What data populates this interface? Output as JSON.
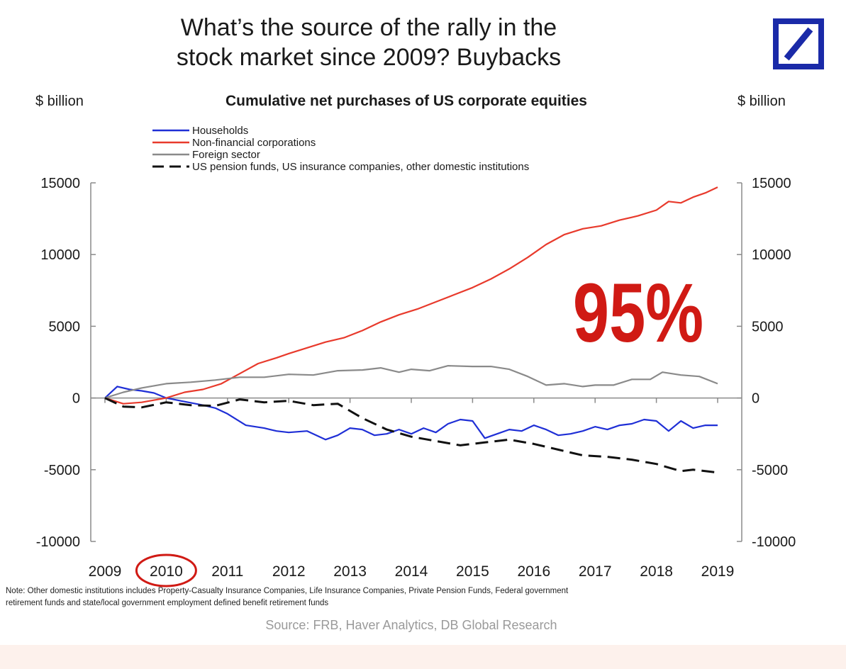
{
  "header": {
    "title_line1": "What’s the source of the rally in the",
    "title_line2": "stock market since 2009? Buybacks",
    "logo_icon": "deutsche-bank-logo",
    "logo_color": "#1a2aa8"
  },
  "chart_data": {
    "type": "line",
    "title": "Cumulative net purchases of US corporate equities",
    "ylabel_left": "$ billion",
    "ylabel_right": "$ billion",
    "xlim": [
      2009,
      2019
    ],
    "ylim": [
      -10000,
      15000
    ],
    "x_ticks": [
      "2009",
      "2010",
      "2011",
      "2012",
      "2013",
      "2014",
      "2015",
      "2016",
      "2017",
      "2018",
      "2019"
    ],
    "y_ticks_left": [
      "15000",
      "10000",
      "5000",
      "0",
      "-5000",
      "-10000"
    ],
    "y_ticks_right": [
      "15000",
      "10000",
      "5000",
      "0",
      "-5000",
      "-10000"
    ],
    "y_tick_values": [
      15000,
      10000,
      5000,
      0,
      -5000,
      -10000
    ],
    "grid": false,
    "legend_position": "top-left",
    "annotation": {
      "text": "95%",
      "color": "#d01a14"
    },
    "highlight": {
      "label": "2010",
      "shape": "ellipse",
      "color": "#d01a14"
    },
    "series": [
      {
        "name": "Households",
        "color": "#1f2fd6",
        "style": "solid",
        "points": [
          [
            2009.0,
            0
          ],
          [
            2009.2,
            800
          ],
          [
            2009.4,
            600
          ],
          [
            2009.6,
            500
          ],
          [
            2009.8,
            350
          ],
          [
            2010.0,
            0
          ],
          [
            2010.3,
            -250
          ],
          [
            2010.6,
            -500
          ],
          [
            2010.8,
            -700
          ],
          [
            2011.0,
            -1100
          ],
          [
            2011.3,
            -1900
          ],
          [
            2011.6,
            -2100
          ],
          [
            2011.8,
            -2300
          ],
          [
            2012.0,
            -2400
          ],
          [
            2012.3,
            -2300
          ],
          [
            2012.6,
            -2900
          ],
          [
            2012.8,
            -2600
          ],
          [
            2013.0,
            -2100
          ],
          [
            2013.2,
            -2200
          ],
          [
            2013.4,
            -2600
          ],
          [
            2013.6,
            -2500
          ],
          [
            2013.8,
            -2200
          ],
          [
            2014.0,
            -2500
          ],
          [
            2014.2,
            -2100
          ],
          [
            2014.4,
            -2400
          ],
          [
            2014.6,
            -1800
          ],
          [
            2014.8,
            -1500
          ],
          [
            2015.0,
            -1600
          ],
          [
            2015.2,
            -2800
          ],
          [
            2015.4,
            -2500
          ],
          [
            2015.6,
            -2200
          ],
          [
            2015.8,
            -2300
          ],
          [
            2016.0,
            -1900
          ],
          [
            2016.2,
            -2200
          ],
          [
            2016.4,
            -2600
          ],
          [
            2016.6,
            -2500
          ],
          [
            2016.8,
            -2300
          ],
          [
            2017.0,
            -2000
          ],
          [
            2017.2,
            -2200
          ],
          [
            2017.4,
            -1900
          ],
          [
            2017.6,
            -1800
          ],
          [
            2017.8,
            -1500
          ],
          [
            2018.0,
            -1600
          ],
          [
            2018.2,
            -2300
          ],
          [
            2018.4,
            -1600
          ],
          [
            2018.6,
            -2100
          ],
          [
            2018.8,
            -1900
          ],
          [
            2019.0,
            -1900
          ]
        ]
      },
      {
        "name": "Non-financial corporations",
        "color": "#e83a2c",
        "style": "solid",
        "points": [
          [
            2009.0,
            0
          ],
          [
            2009.3,
            -400
          ],
          [
            2009.6,
            -300
          ],
          [
            2010.0,
            0
          ],
          [
            2010.3,
            400
          ],
          [
            2010.6,
            600
          ],
          [
            2010.9,
            1000
          ],
          [
            2011.2,
            1700
          ],
          [
            2011.5,
            2400
          ],
          [
            2011.8,
            2800
          ],
          [
            2012.0,
            3100
          ],
          [
            2012.3,
            3500
          ],
          [
            2012.6,
            3900
          ],
          [
            2012.9,
            4200
          ],
          [
            2013.2,
            4700
          ],
          [
            2013.5,
            5300
          ],
          [
            2013.8,
            5800
          ],
          [
            2014.1,
            6200
          ],
          [
            2014.4,
            6700
          ],
          [
            2014.7,
            7200
          ],
          [
            2015.0,
            7700
          ],
          [
            2015.3,
            8300
          ],
          [
            2015.6,
            9000
          ],
          [
            2015.9,
            9800
          ],
          [
            2016.2,
            10700
          ],
          [
            2016.5,
            11400
          ],
          [
            2016.8,
            11800
          ],
          [
            2017.1,
            12000
          ],
          [
            2017.4,
            12400
          ],
          [
            2017.7,
            12700
          ],
          [
            2018.0,
            13100
          ],
          [
            2018.2,
            13700
          ],
          [
            2018.4,
            13600
          ],
          [
            2018.6,
            14000
          ],
          [
            2018.8,
            14300
          ],
          [
            2019.0,
            14700
          ]
        ]
      },
      {
        "name": "Foreign sector",
        "color": "#8a8a8a",
        "style": "solid",
        "points": [
          [
            2009.0,
            0
          ],
          [
            2009.3,
            400
          ],
          [
            2009.6,
            700
          ],
          [
            2010.0,
            1000
          ],
          [
            2010.4,
            1100
          ],
          [
            2010.8,
            1250
          ],
          [
            2011.2,
            1450
          ],
          [
            2011.6,
            1450
          ],
          [
            2012.0,
            1650
          ],
          [
            2012.4,
            1600
          ],
          [
            2012.8,
            1900
          ],
          [
            2013.2,
            1950
          ],
          [
            2013.5,
            2100
          ],
          [
            2013.8,
            1800
          ],
          [
            2014.0,
            2000
          ],
          [
            2014.3,
            1900
          ],
          [
            2014.6,
            2250
          ],
          [
            2015.0,
            2200
          ],
          [
            2015.3,
            2200
          ],
          [
            2015.6,
            2000
          ],
          [
            2015.9,
            1500
          ],
          [
            2016.2,
            900
          ],
          [
            2016.5,
            1000
          ],
          [
            2016.8,
            800
          ],
          [
            2017.0,
            900
          ],
          [
            2017.3,
            900
          ],
          [
            2017.6,
            1300
          ],
          [
            2017.9,
            1300
          ],
          [
            2018.1,
            1800
          ],
          [
            2018.4,
            1600
          ],
          [
            2018.7,
            1500
          ],
          [
            2019.0,
            1000
          ]
        ]
      },
      {
        "name": "US pension funds, US insurance companies, other domestic institutions",
        "color": "#111111",
        "style": "dashed",
        "points": [
          [
            2009.0,
            0
          ],
          [
            2009.3,
            -600
          ],
          [
            2009.6,
            -650
          ],
          [
            2010.0,
            -300
          ],
          [
            2010.4,
            -500
          ],
          [
            2010.8,
            -550
          ],
          [
            2011.2,
            -100
          ],
          [
            2011.6,
            -300
          ],
          [
            2012.0,
            -200
          ],
          [
            2012.4,
            -500
          ],
          [
            2012.8,
            -400
          ],
          [
            2013.2,
            -1400
          ],
          [
            2013.6,
            -2200
          ],
          [
            2014.0,
            -2700
          ],
          [
            2014.4,
            -3000
          ],
          [
            2014.8,
            -3300
          ],
          [
            2015.2,
            -3100
          ],
          [
            2015.6,
            -2900
          ],
          [
            2016.0,
            -3200
          ],
          [
            2016.4,
            -3600
          ],
          [
            2016.8,
            -4000
          ],
          [
            2017.2,
            -4100
          ],
          [
            2017.6,
            -4300
          ],
          [
            2018.0,
            -4600
          ],
          [
            2018.4,
            -5100
          ],
          [
            2018.6,
            -5000
          ],
          [
            2018.8,
            -5100
          ],
          [
            2019.0,
            -5200
          ]
        ]
      }
    ]
  },
  "footer": {
    "note_line1": "Note: Other domestic institutions includes Property-Casualty Insurance Companies, Life Insurance Companies, Private Pension Funds, Federal government",
    "note_line2": "retirement funds and state/local government employment defined benefit retirement funds",
    "source": "Source: FRB, Haver Analytics, DB Global Research"
  }
}
